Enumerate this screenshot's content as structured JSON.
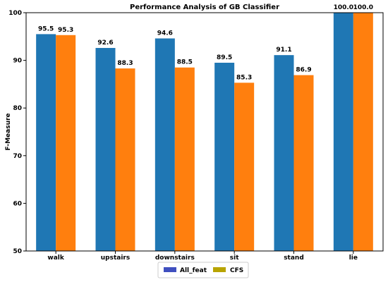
{
  "chart_data": {
    "type": "bar",
    "title": "Performance Analysis of GB  Classifier",
    "xlabel": "",
    "ylabel": "F-Measure",
    "categories": [
      "walk",
      "upstairs",
      "downstairs",
      "sit",
      "stand",
      "lie"
    ],
    "series": [
      {
        "name": "All_feat",
        "values": [
          95.5,
          92.6,
          94.6,
          89.5,
          91.1,
          100.0
        ],
        "color": "#1f77b4",
        "labels": [
          "95.5",
          "92.6",
          "94.6",
          "89.5",
          "91.1",
          "100.0"
        ]
      },
      {
        "name": "CFS",
        "values": [
          95.3,
          88.3,
          88.5,
          85.3,
          86.9,
          100.0
        ],
        "color": "#ff7f0e",
        "labels": [
          "95.3",
          "88.3",
          "88.5",
          "85.3",
          "86.9",
          "100.0"
        ]
      }
    ],
    "legend": {
      "position": "bottom-center",
      "swatch_colors": [
        "#3f4fbf",
        "#b8a400"
      ]
    },
    "ylim": [
      50,
      100
    ],
    "yticks": [
      50,
      60,
      70,
      80,
      90,
      100
    ],
    "ytick_labels": [
      "50",
      "60",
      "70",
      "80",
      "90",
      "100"
    ],
    "grid": false
  }
}
